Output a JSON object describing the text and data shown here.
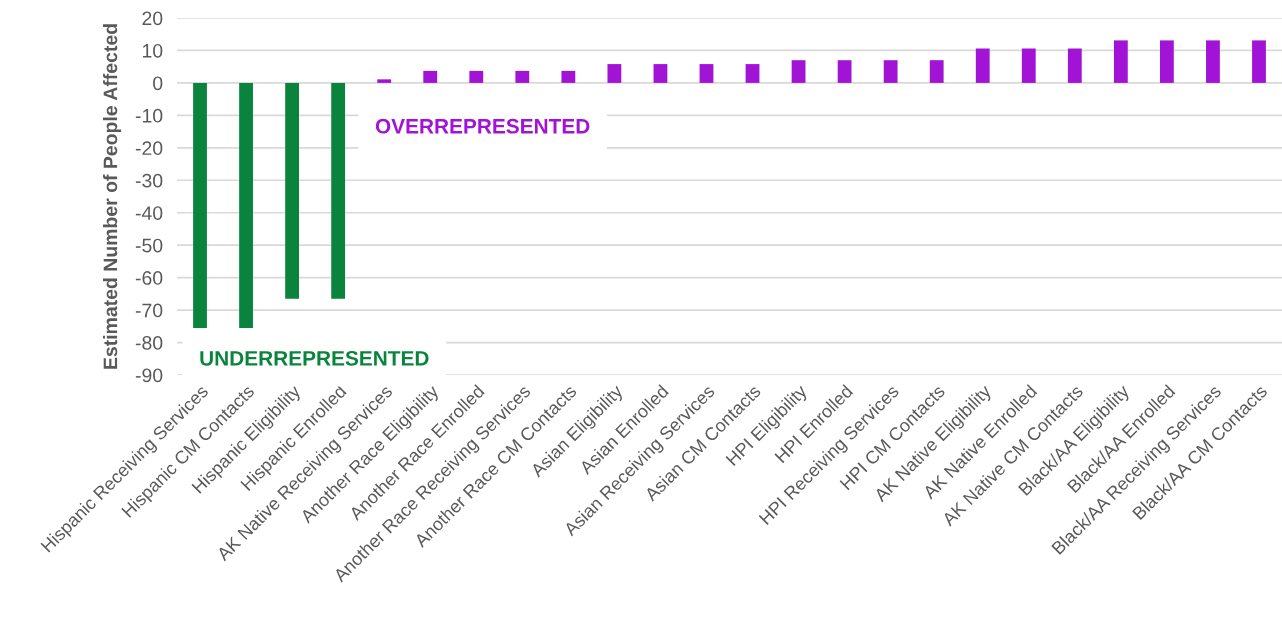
{
  "chart_data": {
    "type": "bar",
    "ylabel": "Estimated Number of People Affected",
    "categories": [
      "Hispanic Receiving Services",
      "Hispanic CM Contacts",
      "Hispanic Eligibility",
      "Hispanic Enrolled",
      "AK Native Receiving Services",
      "Another Race Eligibility",
      "Another Race Enrolled",
      "Another Race Receiving Services",
      "Another Race CM Contacts",
      "Asian Eligibility",
      "Asian Enrolled",
      "Asian Receiving Services",
      "Asian CM Contacts",
      "HPI Eligibility",
      "HPI Enrolled",
      "HPI Receiving Services",
      "HPI CM Contacts",
      "AK Native Eligibility",
      "AK Native Enrolled",
      "AK Native CM Contacts",
      "Black/AA Eligibility",
      "Black/AA Enrolled",
      "Black/AA Receiving Services",
      "Black/AA CM Contacts"
    ],
    "values": [
      -75.5,
      -75.5,
      -66.5,
      -66.5,
      1.1,
      3.7,
      3.7,
      3.7,
      3.7,
      5.8,
      5.8,
      5.8,
      5.8,
      7.0,
      7.0,
      7.0,
      7.0,
      10.6,
      10.6,
      10.6,
      13.1,
      13.1,
      13.1,
      13.1
    ],
    "colors": [
      "#0a843d",
      "#0a843d",
      "#0a843d",
      "#0a843d",
      "#a114d6",
      "#a114d6",
      "#a114d6",
      "#a114d6",
      "#a114d6",
      "#a114d6",
      "#a114d6",
      "#a114d6",
      "#a114d6",
      "#a114d6",
      "#a114d6",
      "#a114d6",
      "#a114d6",
      "#a114d6",
      "#a114d6",
      "#a114d6",
      "#a114d6",
      "#a114d6",
      "#a114d6",
      "#a114d6"
    ],
    "ylim": [
      -90,
      20
    ],
    "yticks": [
      -90,
      -80,
      -70,
      -60,
      -50,
      -40,
      -30,
      -20,
      -10,
      0,
      10,
      20
    ],
    "grid": "y",
    "annotations": [
      "UNDERREPRESENTED",
      "OVERREPRESENTED"
    ]
  }
}
